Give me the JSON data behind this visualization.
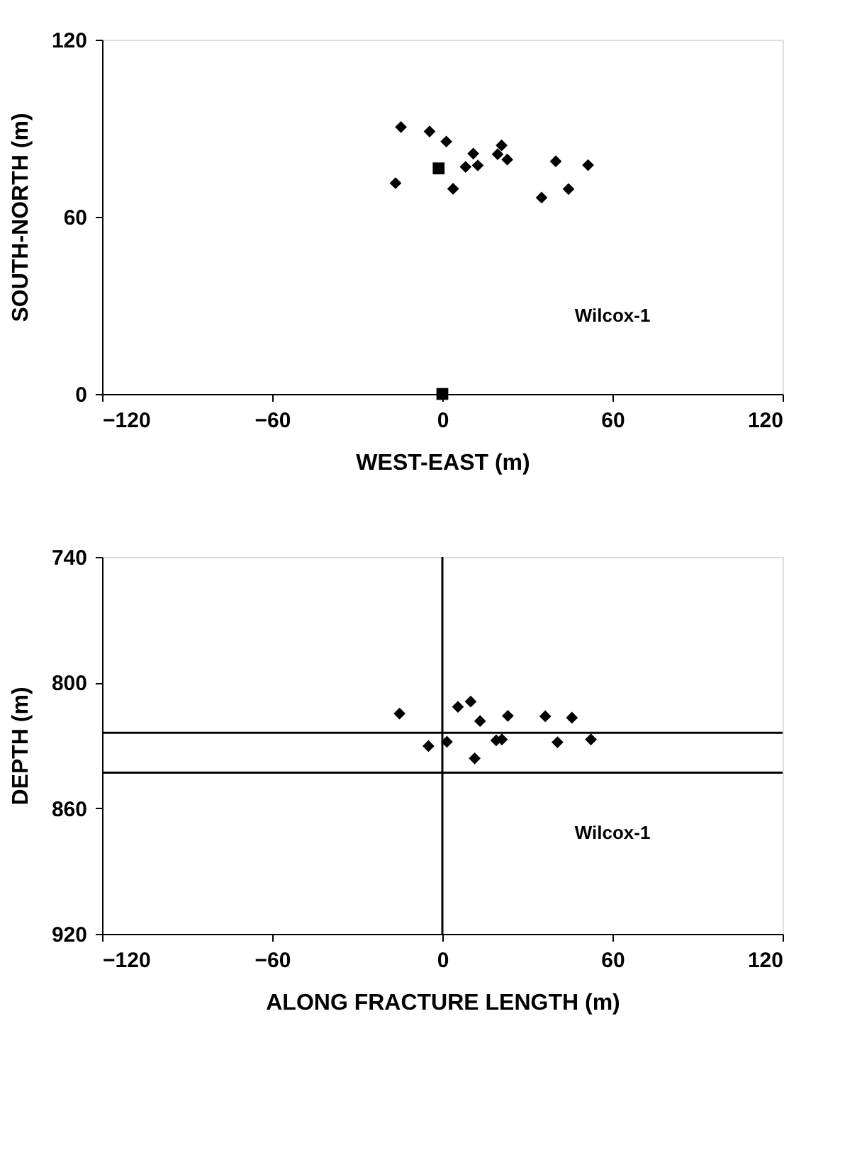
{
  "chart_data": [
    {
      "type": "scatter",
      "xlabel": "WEST-EAST (m)",
      "ylabel": "SOUTH-NORTH (m)",
      "xlim": [
        -120,
        120
      ],
      "xticks": [
        -120,
        -60,
        0,
        60,
        120
      ],
      "ylim": [
        0,
        120
      ],
      "yticks": [
        0,
        60,
        120
      ],
      "grid": false,
      "annotations": [
        "Wilcox-1"
      ],
      "series": [
        {
          "color": "#000000",
          "marker": "diamond",
          "x": [
            -14.6,
            -4.5,
            1.4,
            10.9,
            8.2,
            12.5,
            -16.5,
            3.8,
            20.9,
            19.5,
            22.9,
            40,
            51.4,
            35,
            44.5
          ],
          "values": [
            90.4,
            88.9,
            85.5,
            81.4,
            76.9,
            77.4,
            71.4,
            69.5,
            84.2,
            81.2,
            79.4,
            78.8,
            77.5,
            66.5,
            69.4
          ]
        },
        {
          "color": "#000000",
          "marker": "square",
          "x": [
            -1.3,
            0
          ],
          "values": [
            76.4,
            0
          ]
        }
      ]
    },
    {
      "type": "scatter",
      "xlabel": "ALONG FRACTURE LENGTH (m)",
      "ylabel": "DEPTH (m)",
      "xlim": [
        -120,
        120
      ],
      "xticks": [
        -120,
        -60,
        0,
        60,
        120
      ],
      "ylim": [
        920,
        740
      ],
      "yticks": [
        740,
        800,
        860,
        920
      ],
      "grid": false,
      "annotations": [
        "Wilcox-1"
      ],
      "ref_lines": [
        {
          "axis": "x",
          "value": 0,
          "color": "#000000"
        },
        {
          "axis": "y",
          "value": 824,
          "color": "#000000"
        },
        {
          "axis": "y",
          "value": 843,
          "color": "#000000"
        }
      ],
      "series": [
        {
          "color": "#000000",
          "marker": "diamond",
          "x": [
            -15.1,
            5.5,
            10.0,
            13.3,
            23.1,
            36.3,
            45.7,
            -4.9,
            1.6,
            11.4,
            19.0,
            21.0,
            40.6,
            52.4
          ],
          "values": [
            814.8,
            811.6,
            809.1,
            818.4,
            815.9,
            816.1,
            816.8,
            830.3,
            828.3,
            836.2,
            827.6,
            827.2,
            828.5,
            827.2
          ]
        }
      ]
    }
  ]
}
